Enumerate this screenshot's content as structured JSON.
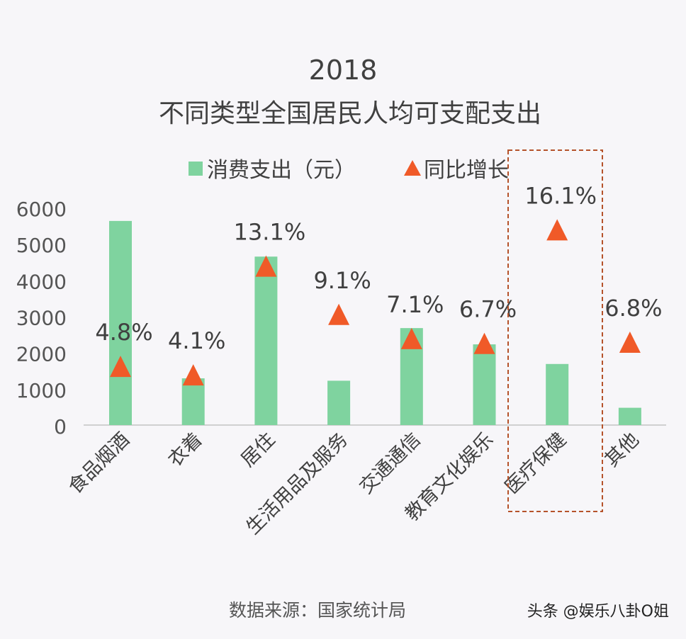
{
  "chart_data": {
    "type": "bar",
    "title": "2018",
    "subtitle": "不同类型全国居民人均可支配支出",
    "categories": [
      "食品烟酒",
      "衣着",
      "居住",
      "生活用品及服务",
      "交通通信",
      "教育文化娱乐",
      "医疗保健",
      "其他"
    ],
    "series": [
      {
        "name": "消费支出（元）",
        "type": "bar",
        "color": "#7fd39f",
        "values": [
          5631,
          1289,
          4647,
          1223,
          2675,
          2226,
          1685,
          477
        ]
      },
      {
        "name": "同比增长",
        "type": "marker-triangle",
        "color": "#f05a28",
        "values": [
          4.8,
          4.1,
          13.1,
          9.1,
          7.1,
          6.7,
          16.1,
          6.8
        ],
        "labels": [
          "4.8%",
          "4.1%",
          "13.1%",
          "9.1%",
          "7.1%",
          "6.7%",
          "16.1%",
          "6.8%"
        ]
      }
    ],
    "yticks": [
      "0",
      "1000",
      "2000",
      "3000",
      "4000",
      "5000",
      "6000"
    ],
    "ylim": [
      0,
      6000
    ],
    "y2lim": [
      0,
      18
    ],
    "legend": "top",
    "grid": false,
    "highlight_category": "医疗保健",
    "highlight_color": "#b5532b"
  },
  "footer": {
    "source": "数据来源：国家统计局",
    "credit": "头条 @娱乐八卦O姐"
  }
}
